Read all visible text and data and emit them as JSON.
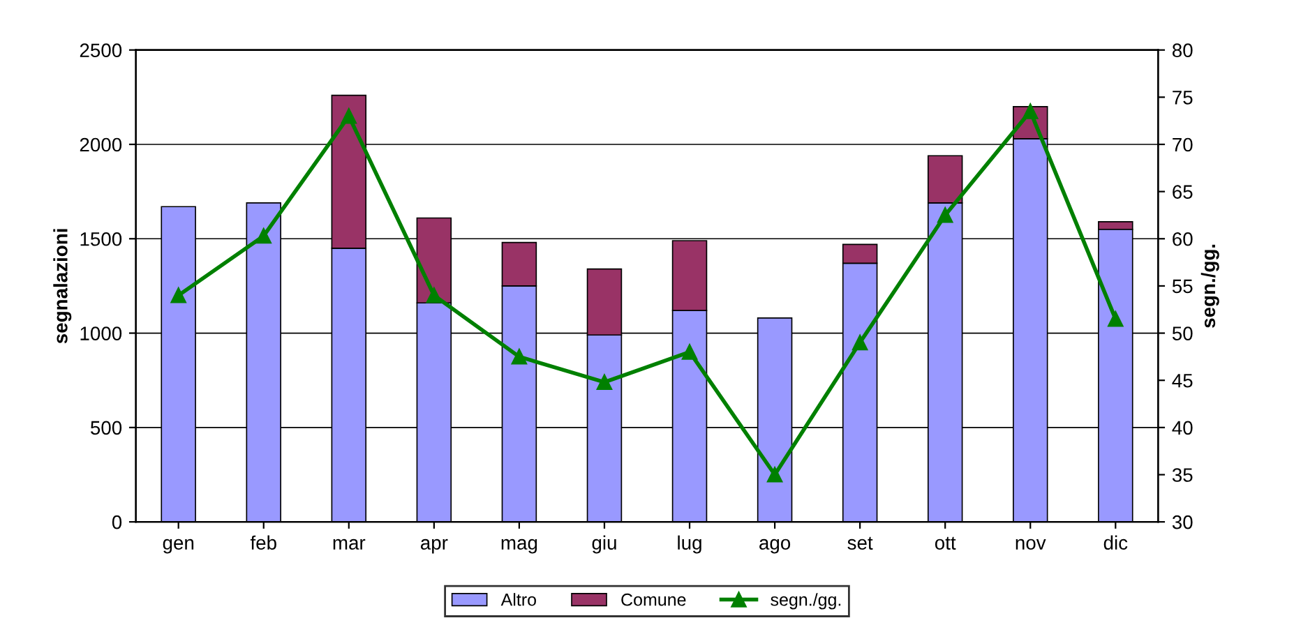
{
  "chart_data": {
    "type": "bar",
    "stacked": true,
    "categories": [
      "gen",
      "feb",
      "mar",
      "apr",
      "mag",
      "giu",
      "lug",
      "ago",
      "set",
      "ott",
      "nov",
      "dic"
    ],
    "series": [
      {
        "name": "Altro",
        "color": "#9999ff",
        "values": [
          1670,
          1690,
          1450,
          1160,
          1250,
          990,
          1120,
          1080,
          1370,
          1690,
          2030,
          1550
        ]
      },
      {
        "name": "Comune",
        "color": "#993366",
        "values": [
          null,
          null,
          810,
          450,
          230,
          350,
          370,
          null,
          100,
          250,
          170,
          40
        ]
      },
      {
        "name": "segn./gg.",
        "type": "line",
        "axis": "y2",
        "color": "#008000",
        "marker": "triangle",
        "values": [
          54,
          60.3,
          73,
          54,
          47.5,
          44.8,
          48,
          35,
          49,
          62.5,
          73.5,
          51.5
        ]
      }
    ],
    "ylabel": "segnalazioni",
    "y2label": "segn./gg.",
    "ylim": [
      0,
      2500
    ],
    "yticks": [
      0,
      500,
      1000,
      1500,
      2000,
      2500
    ],
    "y2lim": [
      30,
      80
    ],
    "y2ticks": [
      30,
      35,
      40,
      45,
      50,
      55,
      60,
      65,
      70,
      75,
      80
    ],
    "grid": "y",
    "legend": "bottom"
  }
}
